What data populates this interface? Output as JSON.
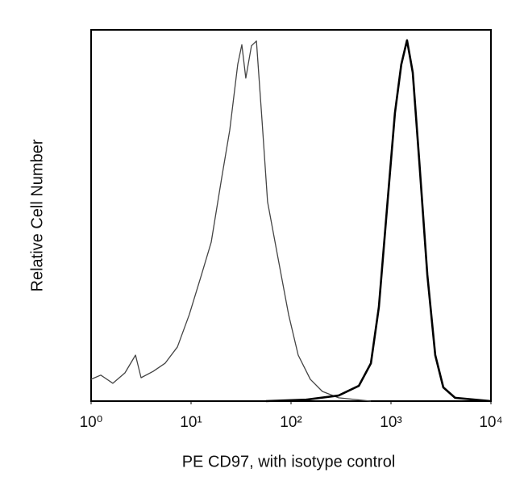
{
  "chart_data": {
    "type": "line",
    "x_label": "PE CD97, with isotype control",
    "y_label": "Relative Cell Number",
    "xscale": "log",
    "xlim": [
      1,
      10000
    ],
    "xticks": [
      {
        "value": 1,
        "label": "10⁰"
      },
      {
        "value": 10,
        "label": "10¹"
      },
      {
        "value": 100,
        "label": "10²"
      },
      {
        "value": 1000,
        "label": "10³"
      },
      {
        "value": 10000,
        "label": "10⁴"
      }
    ],
    "ylim": [
      0,
      100
    ],
    "grid": false,
    "series": [
      {
        "color": "#444444",
        "x": [
          1,
          1.25,
          1.65,
          2.18,
          2.78,
          3.16,
          4.17,
          5.5,
          7.3,
          9.6,
          12.7,
          15.9,
          20.2,
          24.4,
          29.3,
          32.2,
          35.3,
          40.2,
          45.1,
          51.3,
          58.2,
          74.2,
          94.6,
          118,
          156,
          206,
          299,
          630
        ],
        "values": [
          5.9,
          7,
          4.8,
          7.6,
          12.4,
          6.3,
          8,
          10.2,
          14.6,
          23.3,
          34,
          42.8,
          60,
          73,
          90.7,
          96,
          87,
          95.7,
          97,
          75.4,
          53.7,
          38.5,
          23.3,
          12.4,
          5.9,
          2.6,
          0.9,
          0
        ]
      },
      {
        "color": "#000000",
        "x": [
          56,
          142,
          299,
          477,
          630,
          757,
          910,
          1095,
          1268,
          1448,
          1650,
          1920,
          2310,
          2770,
          3340,
          4380,
          10000
        ],
        "values": [
          0,
          0.4,
          1.5,
          4.1,
          10.2,
          25.4,
          51.5,
          77.6,
          90.7,
          97.2,
          88.5,
          64.6,
          34,
          12.4,
          3.7,
          0.9,
          0
        ]
      }
    ]
  }
}
